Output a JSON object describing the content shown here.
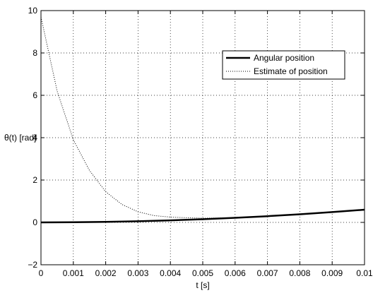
{
  "chart_data": {
    "type": "line",
    "title": "",
    "xlabel": "t [s]",
    "ylabel": "θ(t) [rad]",
    "xlim": [
      0,
      0.01
    ],
    "ylim": [
      -2,
      10
    ],
    "xticks": [
      0,
      0.001,
      0.002,
      0.003,
      0.004,
      0.005,
      0.006,
      0.007,
      0.008,
      0.009,
      0.01
    ],
    "xtick_labels": [
      "0",
      "0.001",
      "0.002",
      "0.003",
      "0.004",
      "0.005",
      "0.006",
      "0.007",
      "0.008",
      "0.009",
      "0.01"
    ],
    "yticks": [
      -2,
      0,
      2,
      4,
      6,
      8,
      10
    ],
    "ytick_labels": [
      "−2",
      "0",
      "2",
      "4",
      "6",
      "8",
      "10"
    ],
    "grid": true,
    "legend_position": "top-right",
    "series": [
      {
        "name": "Angular position",
        "style": "solid",
        "color": "#000000",
        "x": [
          0,
          0.001,
          0.002,
          0.003,
          0.004,
          0.005,
          0.006,
          0.007,
          0.008,
          0.009,
          0.01
        ],
        "y": [
          0,
          0.006,
          0.024,
          0.054,
          0.096,
          0.15,
          0.216,
          0.294,
          0.384,
          0.486,
          0.6
        ]
      },
      {
        "name": "Estimate of position",
        "style": "dotted",
        "color": "#000000",
        "x": [
          0,
          0.0005,
          0.001,
          0.0015,
          0.002,
          0.0025,
          0.003,
          0.0035,
          0.004,
          0.0045,
          0.005,
          0.0055,
          0.006
        ],
        "y": [
          9.7,
          6.2,
          3.9,
          2.45,
          1.45,
          0.85,
          0.5,
          0.32,
          0.25,
          0.22,
          0.2,
          0.21,
          0.22
        ]
      }
    ]
  }
}
